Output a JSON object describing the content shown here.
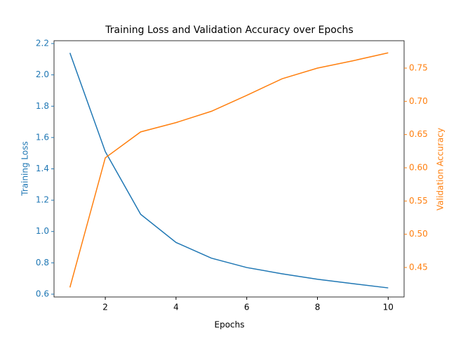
{
  "chart_data": {
    "type": "line",
    "title": "Training Loss and Validation Accuracy over Epochs",
    "xlabel": "Epochs",
    "ylabel": "Training Loss",
    "y2label": "Validation Accuracy",
    "x": [
      1,
      2,
      3,
      4,
      5,
      6,
      7,
      8,
      9,
      10
    ],
    "series": [
      {
        "name": "Training Loss",
        "color": "#1f77b4",
        "values": [
          2.14,
          1.51,
          1.11,
          0.93,
          0.83,
          0.77,
          0.73,
          0.695,
          0.667,
          0.64
        ]
      },
      {
        "name": "Validation Accuracy",
        "color": "#ff7f0e",
        "axis": "y2",
        "values": [
          0.42,
          0.615,
          0.654,
          0.668,
          0.685,
          0.709,
          0.734,
          0.75,
          0.761,
          0.773
        ]
      }
    ],
    "xlim": [
      0.55,
      10.45
    ],
    "xticks": [
      2,
      4,
      6,
      8,
      10
    ],
    "ylim": [
      0.582,
      2.218
    ],
    "yticks": [
      {
        "value": 0.6,
        "label": "0.6"
      },
      {
        "value": 0.8,
        "label": "0.8"
      },
      {
        "value": 1.0,
        "label": "1.0"
      },
      {
        "value": 1.2,
        "label": "1.2"
      },
      {
        "value": 1.4,
        "label": "1.4"
      },
      {
        "value": 1.6,
        "label": "1.6"
      },
      {
        "value": 1.8,
        "label": "1.8"
      },
      {
        "value": 2.0,
        "label": "2.0"
      },
      {
        "value": 2.2,
        "label": "2.2"
      }
    ],
    "y2lim": [
      0.4056,
      0.7912
    ],
    "y2ticks": [
      {
        "value": 0.45,
        "label": "0.45"
      },
      {
        "value": 0.5,
        "label": "0.50"
      },
      {
        "value": 0.55,
        "label": "0.55"
      },
      {
        "value": 0.6,
        "label": "0.60"
      },
      {
        "value": 0.65,
        "label": "0.65"
      },
      {
        "value": 0.7,
        "label": "0.70"
      },
      {
        "value": 0.75,
        "label": "0.75"
      }
    ]
  }
}
